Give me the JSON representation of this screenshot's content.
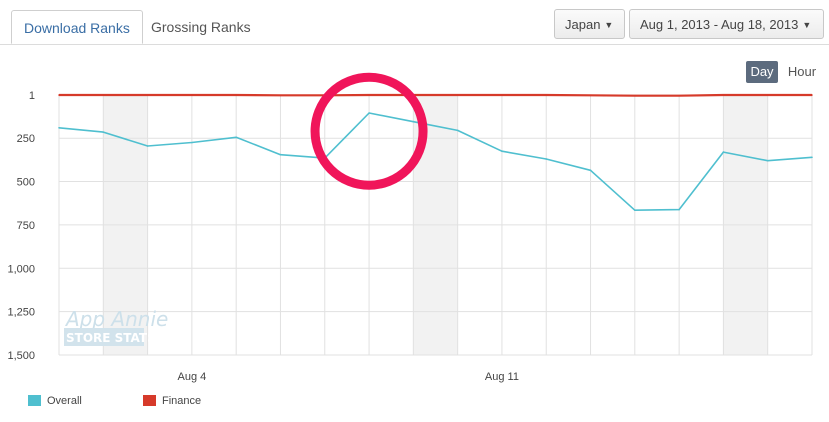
{
  "tabs": {
    "download_label": "Download Ranks",
    "grossing_label": "Grossing Ranks"
  },
  "filters": {
    "country": "Japan",
    "date_range": "Aug 1, 2013 - Aug 18, 2013"
  },
  "granularity": {
    "day_label": "Day",
    "hour_label": "Hour"
  },
  "watermark": {
    "line1": "App Annie",
    "line2": "STORE STATS"
  },
  "colors": {
    "overall": "#4fbfcf",
    "finance": "#d63a2a",
    "highlight_circle": "#f0155a",
    "weekend_band": "#f2f2f2"
  },
  "chart_data": {
    "type": "line",
    "x": [
      "Aug 1",
      "Aug 2",
      "Aug 3",
      "Aug 4",
      "Aug 5",
      "Aug 6",
      "Aug 7",
      "Aug 8",
      "Aug 9",
      "Aug 10",
      "Aug 11",
      "Aug 12",
      "Aug 13",
      "Aug 14",
      "Aug 15",
      "Aug 16",
      "Aug 17",
      "Aug 18"
    ],
    "x_tick_labels": [
      {
        "x": "Aug 4",
        "label": "Aug 4"
      },
      {
        "x": "Aug 11",
        "label": "Aug 11"
      }
    ],
    "y_tick_labels": [
      "1",
      "250",
      "500",
      "750",
      "1,000",
      "1,250",
      "1,500"
    ],
    "y_ticks": [
      1,
      250,
      500,
      750,
      1000,
      1250,
      1500
    ],
    "ylim": [
      1,
      1500
    ],
    "y_reversed": true,
    "grid": true,
    "weekend_bands": [
      [
        "Aug 2",
        "Aug 3"
      ],
      [
        "Aug 9",
        "Aug 10"
      ],
      [
        "Aug 16",
        "Aug 17"
      ]
    ],
    "series": [
      {
        "name": "Overall",
        "values": [
          190,
          215,
          295,
          275,
          245,
          345,
          365,
          105,
          155,
          205,
          325,
          370,
          435,
          665,
          662,
          330,
          380,
          360
        ]
      },
      {
        "name": "Finance",
        "values": [
          1,
          1,
          1,
          1,
          1,
          3,
          3,
          1,
          1,
          1,
          1,
          1,
          3,
          5,
          5,
          1,
          1,
          1
        ]
      }
    ],
    "highlight": {
      "x": "Aug 8",
      "y": 210
    },
    "legend_placement": "bottom-left"
  }
}
